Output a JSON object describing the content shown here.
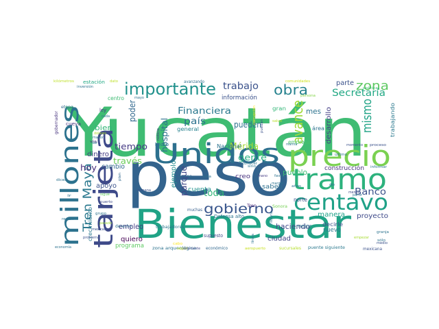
{
  "words": [
    {
      "text": "Yucatán",
      "color": "#3fbc73"
    },
    {
      "text": "peso",
      "color": "#33638d"
    },
    {
      "text": "Bienestar",
      "color": "#20a386"
    },
    {
      "text": "Unidos",
      "color": "#2d708e"
    },
    {
      "text": "precio",
      "color": "#7ad151"
    },
    {
      "text": "tramo",
      "color": "#2db27d"
    },
    {
      "text": "tarjeta",
      "color": "#3e4a89"
    },
    {
      "text": "millones",
      "color": "#2c728e"
    },
    {
      "text": "centavo",
      "color": "#1fa187"
    },
    {
      "text": "importante",
      "color": "#21918c"
    },
    {
      "text": "gobierno",
      "color": "#39568c"
    },
    {
      "text": "obra",
      "color": "#26828e"
    },
    {
      "text": "zona",
      "color": "#5ec962"
    },
    {
      "text": "Tren Maya",
      "color": "#2a788e"
    },
    {
      "text": "avance",
      "color": "#a0da39"
    },
    {
      "text": "mismo",
      "color": "#20a386"
    },
    {
      "text": "Secretaría",
      "color": "#22a884"
    },
    {
      "text": "Mérida",
      "color": "#a5db36"
    },
    {
      "text": "Financiera",
      "color": "#2a788e"
    },
    {
      "text": "Banco",
      "color": "#3b528b"
    },
    {
      "text": "trabajo",
      "color": "#3b528b"
    },
    {
      "text": "país",
      "color": "#2c728e"
    },
    {
      "text": "poder",
      "color": "#31688e"
    },
    {
      "text": "hospital",
      "color": "#2d708e"
    },
    {
      "text": "parque",
      "color": "#404688"
    },
    {
      "text": "tiempo",
      "color": "#443983"
    },
    {
      "text": "través",
      "color": "#6ccd5a"
    },
    {
      "text": "gente",
      "color": "#28ae80"
    },
    {
      "text": "pueden",
      "color": "#2c728e"
    },
    {
      "text": "toda",
      "color": "#35b779"
    },
    {
      "text": "empleo",
      "color": "#433e85"
    },
    {
      "text": "haciendo",
      "color": "#3e4a89"
    },
    {
      "text": "proyecto",
      "color": "#3e4a89"
    },
    {
      "text": "manera",
      "color": "#1fa188"
    },
    {
      "text": "mes",
      "color": "#2c728e"
    },
    {
      "text": "hoy",
      "color": "#472d7b"
    },
    {
      "text": "bien",
      "color": "#35b779"
    },
    {
      "text": "cambio",
      "color": "#31688e"
    },
    {
      "text": "dinero",
      "color": "#443a83"
    },
    {
      "text": "apoyo",
      "color": "#3b528b"
    },
    {
      "text": "quiero",
      "color": "#440154"
    },
    {
      "text": "ejemplo",
      "color": "#228c8d"
    },
    {
      "text": "cuenta",
      "color": "#21918c"
    },
    {
      "text": "creo",
      "color": "#46307e"
    },
    {
      "text": "saben",
      "color": "#2d708e"
    },
    {
      "text": "pueblo",
      "color": "#3dbc74"
    },
    {
      "text": "construcción",
      "color": "#46327e"
    },
    {
      "text": "parte",
      "color": "#3b528b"
    },
    {
      "text": "desarrollo",
      "color": "#433e85"
    },
    {
      "text": "información",
      "color": "#3b528b"
    },
    {
      "text": "general",
      "color": "#26828e"
    },
    {
      "text": "Nacional",
      "color": "#2c728e"
    },
    {
      "text": "programa",
      "color": "#5ec962"
    },
    {
      "text": "crecimiento",
      "color": "#2a788e"
    },
    {
      "text": "ciudad",
      "color": "#414487"
    },
    {
      "text": "nuevo",
      "color": "#2a788e"
    },
    {
      "text": "decirle",
      "color": "#3b528b"
    },
    {
      "text": "mejor",
      "color": "#2c728e"
    },
    {
      "text": "norte",
      "color": "#3b528b"
    },
    {
      "text": "centro",
      "color": "#3fbc73"
    },
    {
      "text": "empresa",
      "color": "#4ac16d"
    },
    {
      "text": "gran",
      "color": "#35b779"
    },
    {
      "text": "área",
      "color": "#2c728e"
    },
    {
      "text": "trabajando",
      "color": "#2a788e"
    },
    {
      "text": "etapa",
      "color": "#31688e"
    },
    {
      "text": "cueva",
      "color": "#46327e"
    },
    {
      "text": "ley",
      "color": "#443983"
    },
    {
      "text": "hecho",
      "color": "#2d708e"
    },
    {
      "text": "estación",
      "color": "#22a884"
    },
    {
      "text": "inversión",
      "color": "#2c728e"
    },
    {
      "text": "kilómetros",
      "color": "#bddf26"
    },
    {
      "text": "dato",
      "color": "#bddf26"
    },
    {
      "text": "avanzando",
      "color": "#2d708e"
    },
    {
      "text": "comunidades",
      "color": "#cde11d"
    },
    {
      "text": "política",
      "color": "#3fbc73"
    },
    {
      "text": "persona",
      "color": "#84d44b"
    },
    {
      "text": "gobernador",
      "color": "#46327e"
    },
    {
      "text": "zona arqueológica",
      "color": "#2c728e"
    },
    {
      "text": "supuesto",
      "color": "#3e4a89"
    },
    {
      "text": "Defensa alto",
      "color": "#2c728e"
    },
    {
      "text": "Tren",
      "color": "#482878"
    },
    {
      "text": "Sonora",
      "color": "#75d054"
    },
    {
      "text": "puente siguiente",
      "color": "#2a788e"
    },
    {
      "text": "mexicana",
      "color": "#3b528b"
    },
    {
      "text": "económico",
      "color": "#31688e"
    },
    {
      "text": "sucursales",
      "color": "#b5de2b"
    },
    {
      "text": "trabajadores",
      "color": "#2a788e"
    },
    {
      "text": "muchas",
      "color": "#355f8d"
    },
    {
      "text": "semana",
      "color": "#3b528b"
    },
    {
      "text": "derecho",
      "color": "#2d708e"
    },
    {
      "text": "alguna",
      "color": "#31688e"
    },
    {
      "text": "ruta",
      "color": "#2c728e"
    },
    {
      "text": "mano",
      "color": "#443a83"
    },
    {
      "text": "sino",
      "color": "#2c728e"
    },
    {
      "text": "conocer",
      "color": "#2c728e"
    },
    {
      "text": "años",
      "color": "#2c728e"
    },
    {
      "text": "dio",
      "color": "#2d708e"
    },
    {
      "text": "último",
      "color": "#2c728e"
    },
    {
      "text": "momento",
      "color": "#3b528b"
    },
    {
      "text": "proceso",
      "color": "#3b528b"
    },
    {
      "text": "informar",
      "color": "#2a788e"
    },
    {
      "text": "corrupción",
      "color": "#fde725"
    },
    {
      "text": "salud",
      "color": "#b8de29"
    },
    {
      "text": "puedan",
      "color": "#3b528b"
    },
    {
      "text": "noticia",
      "color": "#443983"
    },
    {
      "text": "seguir",
      "color": "#c2df23"
    },
    {
      "text": "solamente",
      "color": "#3e4a89"
    },
    {
      "text": "problema",
      "color": "#3b528b"
    },
    {
      "text": "mexicano",
      "color": "#3b528b"
    },
    {
      "text": "puerto",
      "color": "#3e4a89"
    },
    {
      "text": "grupo",
      "color": "#2c728e"
    },
    {
      "text": "pasado",
      "color": "#9bd93c"
    },
    {
      "text": "sigue",
      "color": "#5ec962"
    },
    {
      "text": "plan",
      "color": "#31688e"
    },
    {
      "text": "economía",
      "color": "#2c728e"
    },
    {
      "text": "sólo",
      "color": "#2c728e"
    },
    {
      "text": "medio",
      "color": "#3b528b"
    },
    {
      "text": "granja",
      "color": "#2c728e"
    },
    {
      "text": "partir",
      "color": "#2c728e"
    },
    {
      "text": "menos",
      "color": "#3e4a89"
    },
    {
      "text": "línea",
      "color": "#2c728e"
    },
    {
      "text": "historia",
      "color": "#2c728e"
    },
    {
      "text": "marina",
      "color": "#2c728e"
    },
    {
      "text": "favor",
      "color": "#2c728e"
    },
    {
      "text": "margen",
      "color": "#2c728e"
    },
    {
      "text": "aeropuerto",
      "color": "#c8e020"
    },
    {
      "text": "cabo",
      "color": "#fde725"
    },
    {
      "text": "dicen",
      "color": "#2c728e"
    },
    {
      "text": "vía",
      "color": "#46327e"
    },
    {
      "text": "dólares",
      "color": "#addc30"
    },
    {
      "text": "mayor",
      "color": "#2c728e"
    },
    {
      "text": "cada",
      "color": "#2c728e"
    },
    {
      "text": "dar",
      "color": "#2c728e"
    },
    {
      "text": "ir",
      "color": "#2c728e"
    },
    {
      "text": "mayo",
      "color": "#2c728e"
    },
    {
      "text": "recibir",
      "color": "#2c728e"
    },
    {
      "text": "empezar",
      "color": "#a8db34"
    }
  ]
}
